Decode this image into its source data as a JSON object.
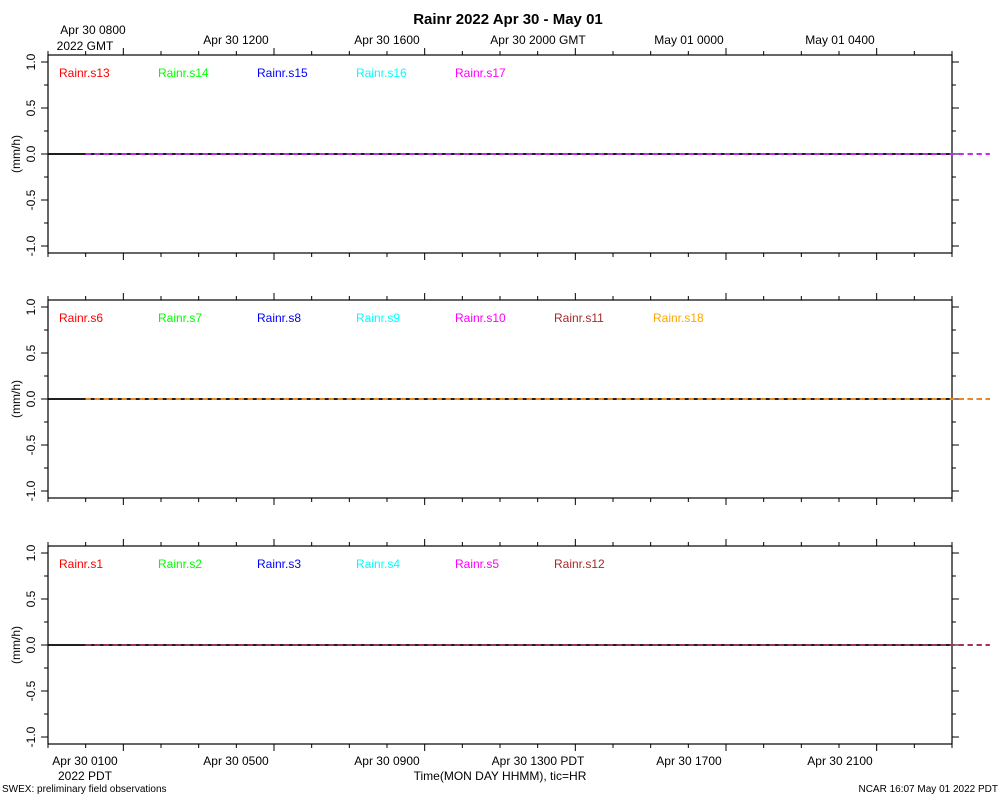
{
  "title": "Rainr 2022 Apr 30 - May 01",
  "footer_left": "SWEX: preliminary field observations",
  "footer_right": "NCAR 16:07 May 01 2022 PDT",
  "x_axis_label": "Time(MON DAY HHMM), tic=HR",
  "top_tick_labels": [
    "Apr 30 0800",
    "Apr 30 1200",
    "Apr 30 1600",
    "Apr 30 2000 GMT",
    "May 01 0000",
    "May 01 0400"
  ],
  "top_year_label": "2022 GMT",
  "bottom_tick_labels": [
    "Apr 30 0100",
    "Apr 30 0500",
    "Apr 30 0900",
    "Apr 30 1300 PDT",
    "Apr 30 1700",
    "Apr 30 2100"
  ],
  "bottom_year_label": "2022 PDT",
  "y_tick_labels": [
    "-1.0",
    "-0.5",
    "0.0",
    "0.5",
    "1.0"
  ],
  "chart_data": [
    {
      "type": "line",
      "ylabel": "(mm/h)",
      "ylim": [
        -1.0,
        1.0
      ],
      "x_range_hours_pdt": [
        0,
        24
      ],
      "series": [
        {
          "name": "Rainr.s13",
          "color": "#ff0000",
          "x": [
            0,
            24
          ],
          "y": [
            0.0,
            0.0
          ]
        },
        {
          "name": "Rainr.s14",
          "color": "#00ff00",
          "x": [
            0,
            24
          ],
          "y": [
            0.0,
            0.0
          ]
        },
        {
          "name": "Rainr.s15",
          "color": "#0000ff",
          "x": [
            0,
            24
          ],
          "y": [
            0.0,
            0.0
          ]
        },
        {
          "name": "Rainr.s16",
          "color": "#00ffff",
          "x": [
            0,
            24
          ],
          "y": [
            0.0,
            0.0
          ]
        },
        {
          "name": "Rainr.s17",
          "color": "#ff00ff",
          "x": [
            0,
            24
          ],
          "y": [
            0.0,
            0.0
          ]
        }
      ]
    },
    {
      "type": "line",
      "ylabel": "(mm/h)",
      "ylim": [
        -1.0,
        1.0
      ],
      "x_range_hours_pdt": [
        0,
        24
      ],
      "series": [
        {
          "name": "Rainr.s6",
          "color": "#ff0000",
          "x": [
            0,
            24
          ],
          "y": [
            0.0,
            0.0
          ]
        },
        {
          "name": "Rainr.s7",
          "color": "#00ff00",
          "x": [
            0,
            24
          ],
          "y": [
            0.0,
            0.0
          ]
        },
        {
          "name": "Rainr.s8",
          "color": "#0000ff",
          "x": [
            0,
            24
          ],
          "y": [
            0.0,
            0.0
          ]
        },
        {
          "name": "Rainr.s9",
          "color": "#00ffff",
          "x": [
            0,
            24
          ],
          "y": [
            0.0,
            0.0
          ]
        },
        {
          "name": "Rainr.s10",
          "color": "#ff00ff",
          "x": [
            0,
            24
          ],
          "y": [
            0.0,
            0.0
          ]
        },
        {
          "name": "Rainr.s11",
          "color": "#a52a2a",
          "x": [
            0,
            24
          ],
          "y": [
            0.0,
            0.0
          ]
        },
        {
          "name": "Rainr.s18",
          "color": "#ffa500",
          "x": [
            0,
            24
          ],
          "y": [
            0.0,
            0.0
          ]
        }
      ]
    },
    {
      "type": "line",
      "ylabel": "(mm/h)",
      "ylim": [
        -1.0,
        1.0
      ],
      "x_range_hours_pdt": [
        0,
        24
      ],
      "series": [
        {
          "name": "Rainr.s1",
          "color": "#ff0000",
          "x": [
            0,
            24
          ],
          "y": [
            0.0,
            0.0
          ]
        },
        {
          "name": "Rainr.s2",
          "color": "#00ff00",
          "x": [
            0,
            24
          ],
          "y": [
            0.0,
            0.0
          ]
        },
        {
          "name": "Rainr.s3",
          "color": "#0000ff",
          "x": [
            0,
            24
          ],
          "y": [
            0.0,
            0.0
          ]
        },
        {
          "name": "Rainr.s4",
          "color": "#00ffff",
          "x": [
            0,
            24
          ],
          "y": [
            0.0,
            0.0
          ]
        },
        {
          "name": "Rainr.s5",
          "color": "#ff00ff",
          "x": [
            0,
            24
          ],
          "y": [
            0.0,
            0.0
          ]
        },
        {
          "name": "Rainr.s12",
          "color": "#a52a2a",
          "x": [
            0,
            24
          ],
          "y": [
            0.0,
            0.0
          ]
        }
      ]
    }
  ]
}
